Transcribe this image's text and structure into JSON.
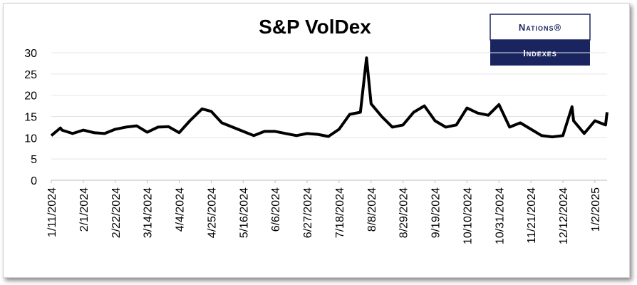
{
  "logo": {
    "top": "Nations®",
    "bottom": "Indexes"
  },
  "chart_data": {
    "type": "line",
    "title": "S&P  VolDex",
    "color": "#000000",
    "grid": true,
    "ylim": [
      0,
      30
    ],
    "yticks": [
      0,
      5,
      10,
      15,
      20,
      25,
      30
    ],
    "xlim": [
      "1/11/2024",
      "1/10/2025"
    ],
    "xticks": [
      "1/11/2024",
      "2/1/2024",
      "2/22/2024",
      "3/14/2024",
      "4/4/2024",
      "4/25/2024",
      "5/16/2024",
      "6/6/2024",
      "6/27/2024",
      "7/18/2024",
      "8/8/2024",
      "8/29/2024",
      "9/19/2024",
      "10/10/2024",
      "10/31/2024",
      "11/21/2024",
      "12/12/2024",
      "1/2/2025"
    ],
    "x": [
      "1/11/2024",
      "1/17/2024",
      "1/18/2024",
      "1/25/2024",
      "2/1/2024",
      "2/8/2024",
      "2/15/2024",
      "2/22/2024",
      "2/29/2024",
      "3/7/2024",
      "3/14/2024",
      "3/21/2024",
      "3/28/2024",
      "4/4/2024",
      "4/11/2024",
      "4/19/2024",
      "4/25/2024",
      "5/2/2024",
      "5/9/2024",
      "5/16/2024",
      "5/23/2024",
      "5/30/2024",
      "6/6/2024",
      "6/13/2024",
      "6/20/2024",
      "6/27/2024",
      "7/4/2024",
      "7/11/2024",
      "7/18/2024",
      "7/25/2024",
      "8/1/2024",
      "8/5/2024",
      "8/8/2024",
      "8/15/2024",
      "8/22/2024",
      "8/29/2024",
      "9/5/2024",
      "9/12/2024",
      "9/19/2024",
      "9/26/2024",
      "10/3/2024",
      "10/10/2024",
      "10/17/2024",
      "10/24/2024",
      "10/31/2024",
      "11/7/2024",
      "11/14/2024",
      "11/21/2024",
      "11/28/2024",
      "12/5/2024",
      "12/12/2024",
      "12/18/2024",
      "12/19/2024",
      "12/26/2024",
      "1/2/2025",
      "1/9/2025",
      "1/10/2025"
    ],
    "values": [
      10.5,
      12.3,
      11.8,
      11.0,
      11.8,
      11.2,
      11.0,
      12.0,
      12.5,
      12.8,
      11.3,
      12.5,
      12.6,
      11.2,
      14.0,
      16.8,
      16.2,
      13.5,
      12.5,
      11.5,
      10.5,
      11.5,
      11.5,
      11.0,
      10.5,
      11.0,
      10.8,
      10.3,
      12.0,
      15.5,
      16.0,
      28.8,
      18.0,
      15.0,
      12.5,
      13.0,
      16.0,
      17.5,
      14.0,
      12.5,
      13.0,
      17.0,
      15.8,
      15.3,
      17.8,
      12.5,
      13.5,
      12.0,
      10.5,
      10.2,
      10.5,
      17.3,
      14.0,
      11.0,
      14.0,
      13.0,
      16.0
    ]
  }
}
